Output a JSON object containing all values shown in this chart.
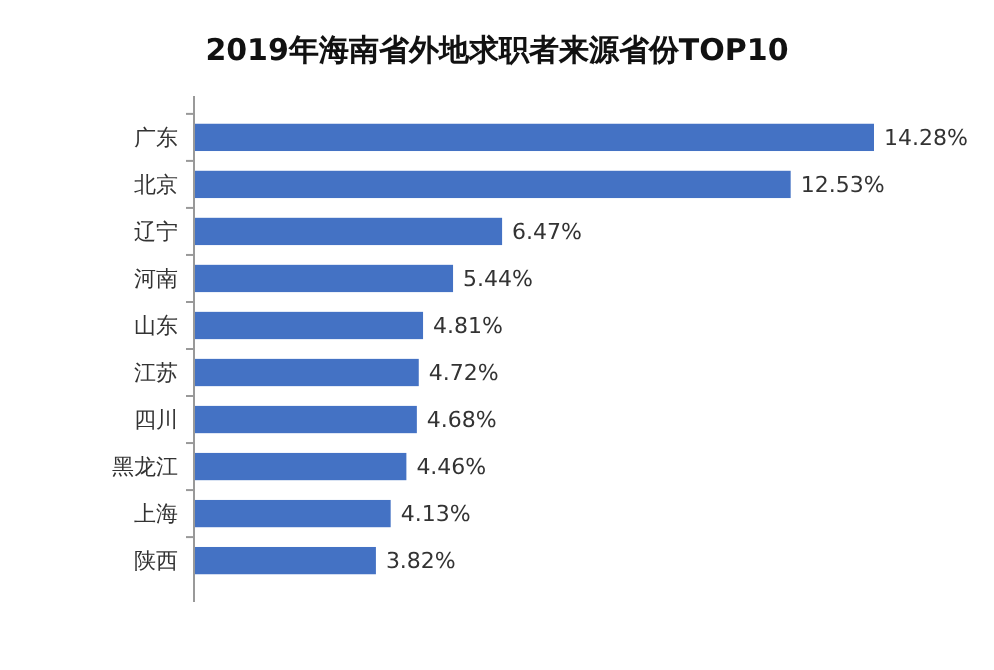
{
  "chart_data": {
    "type": "bar",
    "orientation": "horizontal",
    "title": "2019年海南省外地求职者来源省份TOP10",
    "categories": [
      "广东",
      "北京",
      "辽宁",
      "河南",
      "山东",
      "江苏",
      "四川",
      "黑龙江",
      "上海",
      "陕西"
    ],
    "values": [
      14.28,
      12.53,
      6.47,
      5.44,
      4.81,
      4.72,
      4.68,
      4.46,
      4.13,
      3.82
    ],
    "value_labels": [
      "14.28%",
      "12.53%",
      "6.47%",
      "5.44%",
      "4.81%",
      "4.72%",
      "4.68%",
      "4.46%",
      "4.13%",
      "3.82%"
    ],
    "color": "#4472c4"
  }
}
